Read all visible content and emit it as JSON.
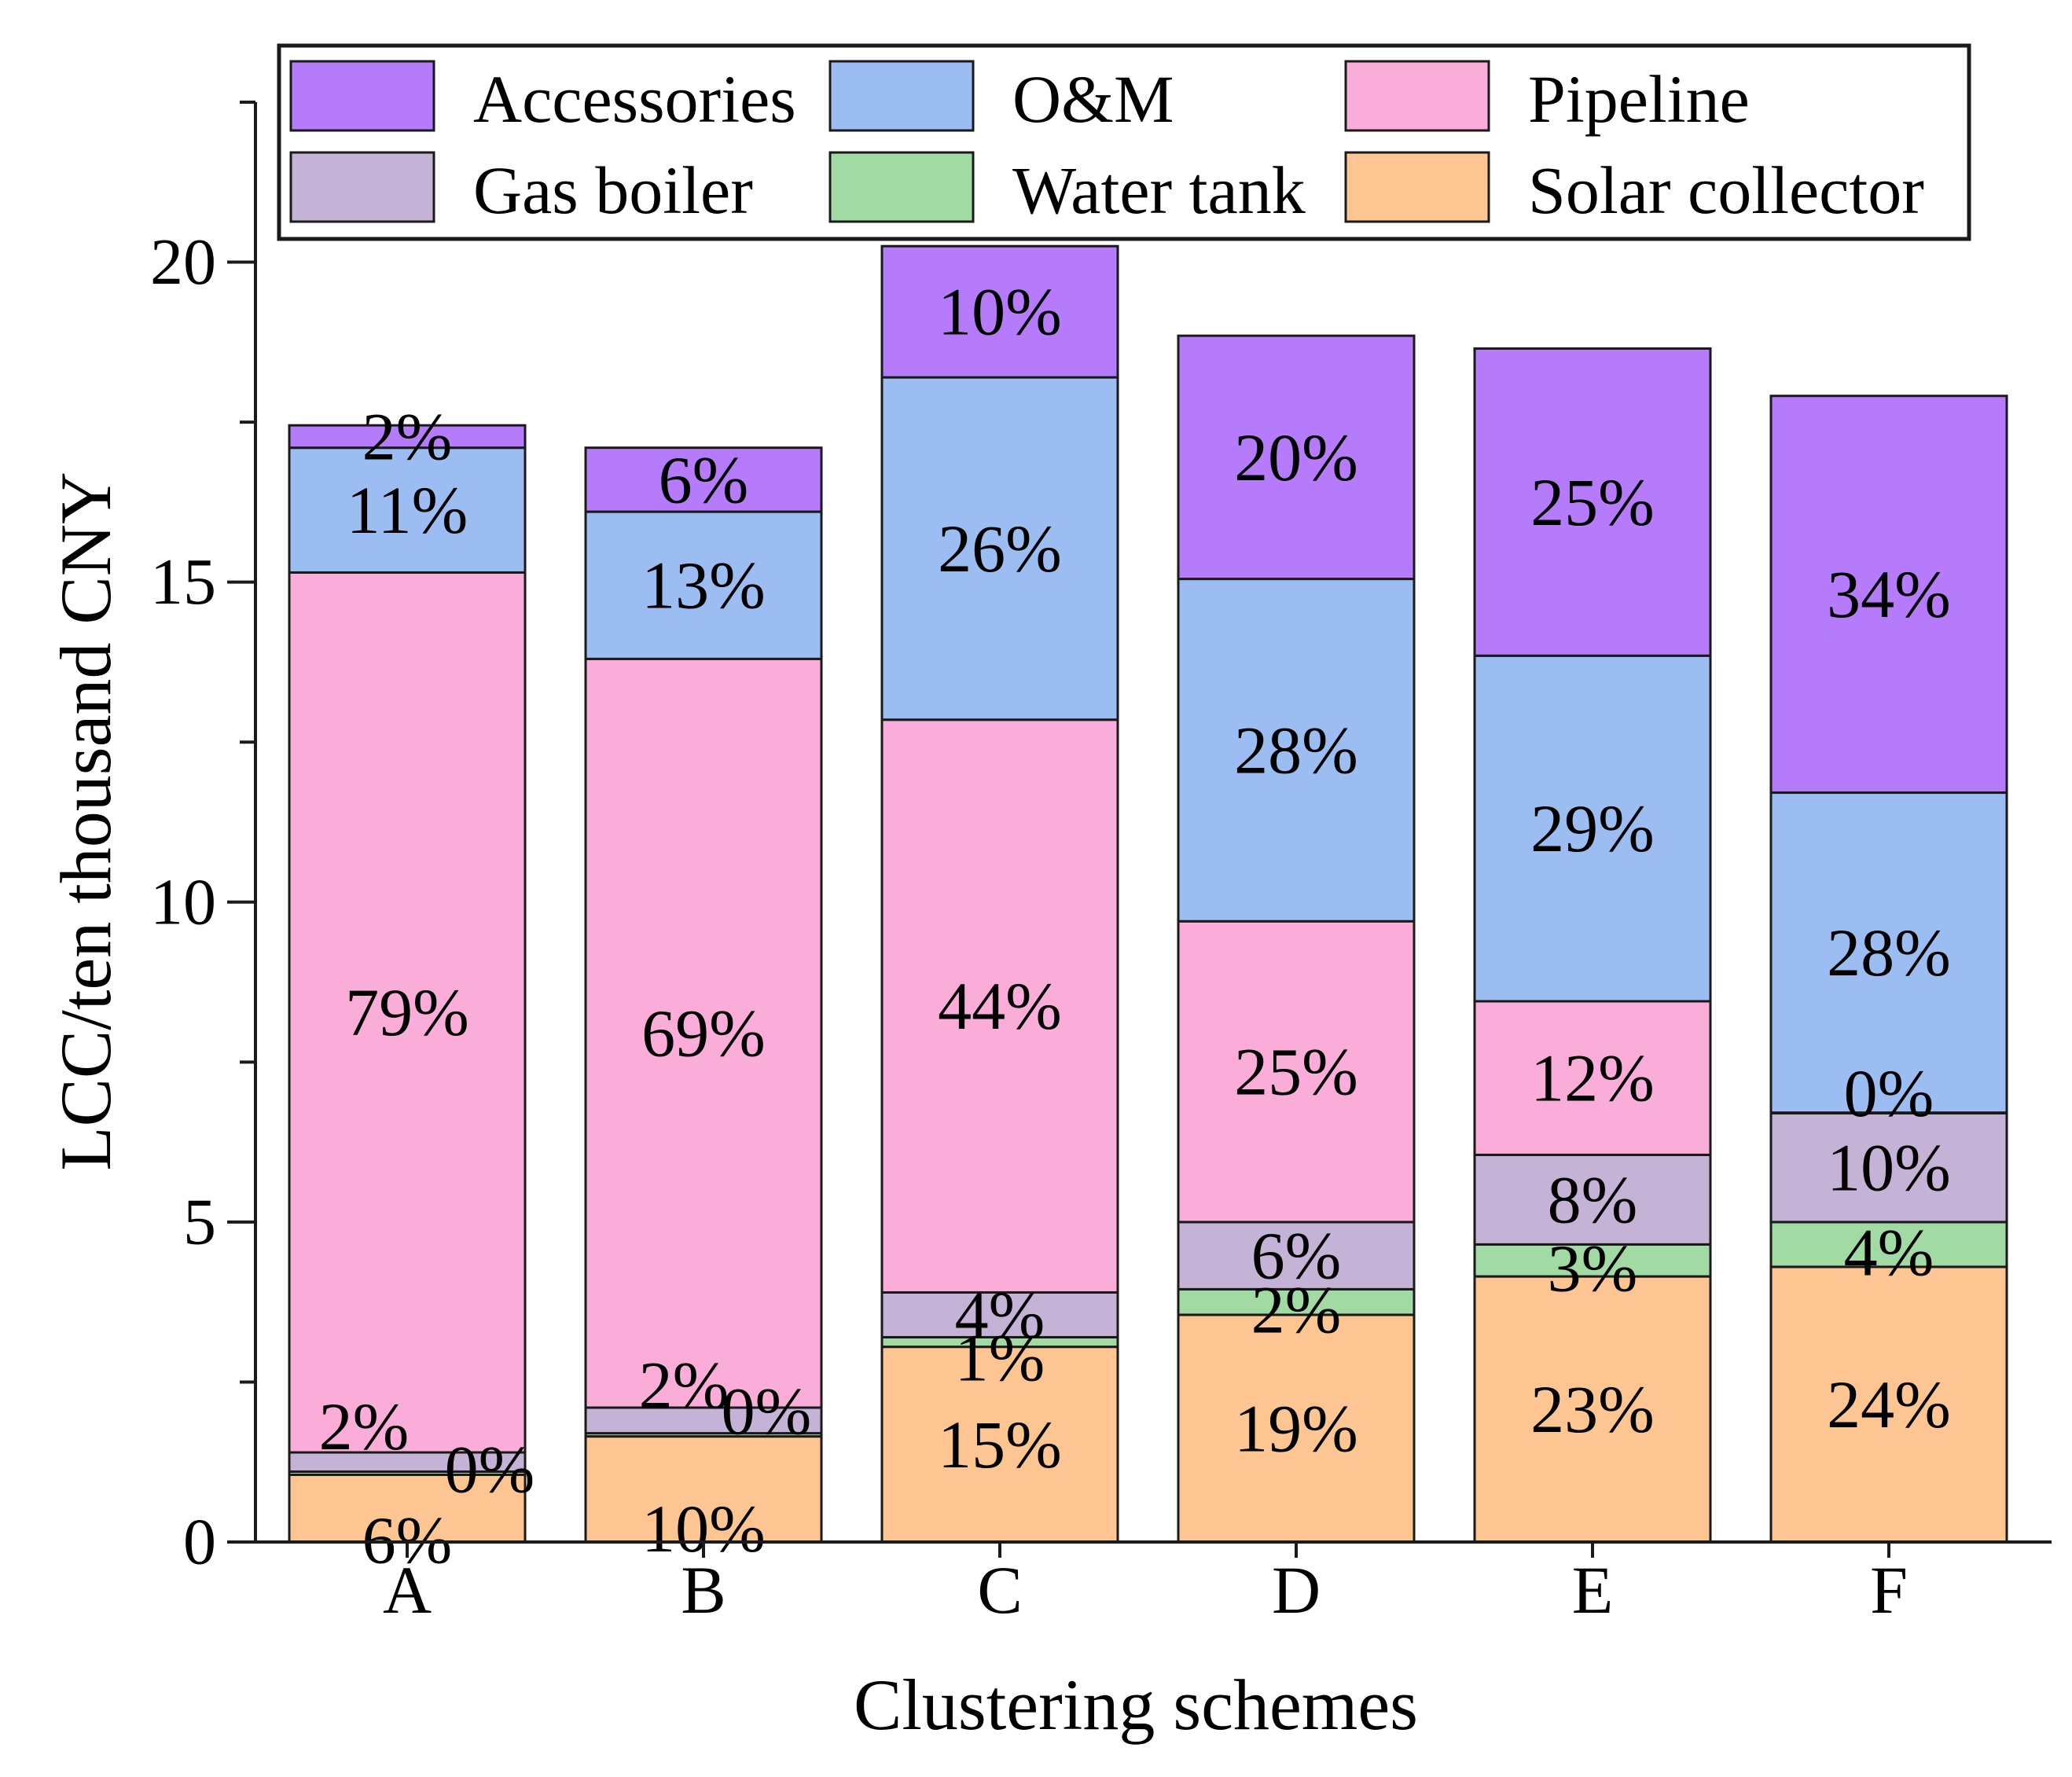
{
  "chart_data": {
    "type": "bar",
    "stacked": true,
    "title": "",
    "xlabel": "Clustering schemes",
    "ylabel": "LCC/ten thousand CNY",
    "ylim": [
      0,
      22.5
    ],
    "yticks": [
      0,
      5,
      10,
      15,
      20
    ],
    "ytick_labels": [
      "0",
      "5",
      "10",
      "15",
      "20"
    ],
    "minor_ticks": [
      2.5,
      7.5,
      12.5,
      17.5,
      22.5
    ],
    "grid": false,
    "legend_position": "top",
    "categories": [
      "A",
      "B",
      "C",
      "D",
      "E",
      "F"
    ],
    "series": [
      {
        "name": "Solar collector",
        "color": "#FDC592",
        "values": [
          1.05,
          1.65,
          3.05,
          3.55,
          4.15,
          4.3
        ],
        "labels": [
          "6%",
          "10%",
          "15%",
          "19%",
          "23%",
          "24%"
        ]
      },
      {
        "name": "Water tank",
        "color": "#A1DAA3",
        "values": [
          0.05,
          0.05,
          0.15,
          0.4,
          0.5,
          0.7
        ],
        "labels": [
          "0%",
          "0%",
          "1%",
          "2%",
          "3%",
          "4%"
        ]
      },
      {
        "name": "Gas boiler",
        "color": "#C5B3D7",
        "values": [
          0.3,
          0.4,
          0.7,
          1.05,
          1.4,
          1.7
        ],
        "labels": [
          "2%",
          "2%",
          "4%",
          "6%",
          "8%",
          "10%"
        ]
      },
      {
        "name": "Pipeline",
        "color": "#FBADD9",
        "values": [
          13.75,
          11.7,
          8.95,
          4.7,
          2.4,
          0.01
        ],
        "labels": [
          "79%",
          "69%",
          "44%",
          "25%",
          "12%",
          "0%"
        ]
      },
      {
        "name": "O&M",
        "color": "#9CBDF1",
        "values": [
          1.95,
          2.3,
          5.35,
          5.35,
          5.4,
          5.0
        ],
        "labels": [
          "11%",
          "13%",
          "26%",
          "28%",
          "29%",
          "28%"
        ]
      },
      {
        "name": "Accessories",
        "color": "#B57BFA",
        "values": [
          0.35,
          1.0,
          2.05,
          3.8,
          4.8,
          6.2
        ],
        "labels": [
          "2%",
          "6%",
          "10%",
          "20%",
          "25%",
          "34%"
        ]
      }
    ],
    "legend_order": [
      "Accessories",
      "O&M",
      "Pipeline",
      "Gas boiler",
      "Water tank",
      "Solar collector"
    ]
  }
}
